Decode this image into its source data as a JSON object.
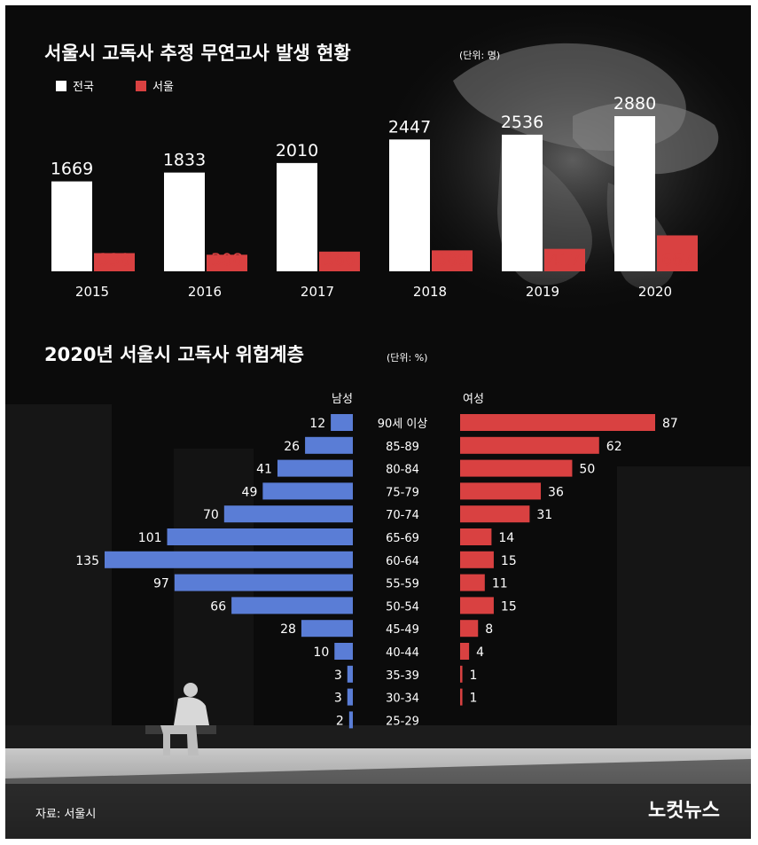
{
  "colors": {
    "national": "#ffffff",
    "seoul": "#d94141",
    "male": "#5a7dd6",
    "female": "#d94141",
    "background": "#0b0b0b"
  },
  "header": {
    "title": "서울시 고독사 추정 무연고사 발생 현황",
    "unit": "(단위: 명)"
  },
  "section2": {
    "title": "2020년 서울시 고독사 위험계층",
    "unit": "(단위: %)"
  },
  "source": "자료: 서울시",
  "brand": "노컷뉴스",
  "chart_data": [
    {
      "type": "bar",
      "title": "서울시 고독사 추정 무연고사 발생 현황",
      "unit": "(단위: 명)",
      "categories": [
        "2015",
        "2016",
        "2017",
        "2018",
        "2019",
        "2020"
      ],
      "series": [
        {
          "name": "전국",
          "values": [
            1669,
            1833,
            2010,
            2447,
            2536,
            2880
          ],
          "color": "#ffffff"
        },
        {
          "name": "서울",
          "values": [
            338,
            308,
            366,
            389,
            417,
            667
          ],
          "color": "#d94141"
        }
      ],
      "legend_position": "top-left",
      "grid": false
    },
    {
      "type": "bar",
      "orientation": "horizontal-pyramid",
      "title": "2020년 서울시 고독사 위험계층",
      "unit": "(단위: %)",
      "categories": [
        "90세 이상",
        "85-89",
        "80-84",
        "75-79",
        "70-74",
        "65-69",
        "60-64",
        "55-59",
        "50-54",
        "45-49",
        "40-44",
        "35-39",
        "30-34",
        "25-29"
      ],
      "series": [
        {
          "name": "남성",
          "values": [
            12,
            26,
            41,
            49,
            70,
            101,
            135,
            97,
            66,
            28,
            10,
            3,
            3,
            2
          ],
          "color": "#5a7dd6"
        },
        {
          "name": "여성",
          "values": [
            87,
            62,
            50,
            36,
            31,
            14,
            15,
            11,
            15,
            8,
            4,
            1,
            1,
            null
          ],
          "color": "#d94141"
        }
      ],
      "grid": false
    }
  ]
}
